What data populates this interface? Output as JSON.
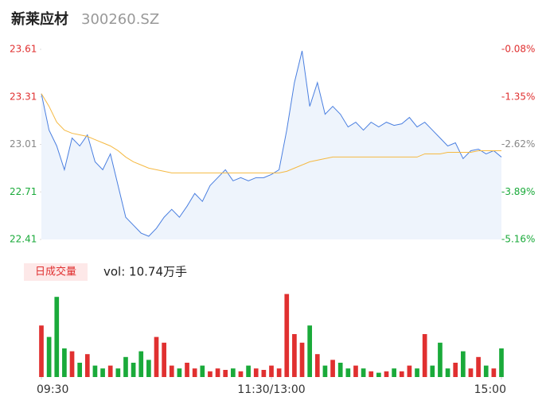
{
  "chart_data": [
    {
      "type": "line",
      "title": "新莱应材",
      "subtitle": "300260.SZ",
      "x": [
        0,
        4,
        8,
        12,
        16,
        20,
        24,
        28,
        32,
        36,
        40,
        44,
        48,
        52,
        56,
        60,
        64,
        68,
        72,
        76,
        80,
        84,
        88,
        92,
        96,
        100,
        104,
        108,
        112,
        116,
        120,
        124,
        128,
        132,
        136,
        140,
        144,
        148,
        152,
        156,
        160,
        164,
        168,
        172,
        176,
        180,
        184,
        188,
        192,
        196,
        200,
        204,
        208,
        212,
        216,
        220,
        224,
        228,
        232,
        236,
        240
      ],
      "xlim": [
        0,
        240
      ],
      "ylim": [
        22.41,
        23.61
      ],
      "yticks": [
        22.41,
        22.71,
        23.01,
        23.31,
        23.61
      ],
      "y2lim": [
        -5.16,
        -0.08
      ],
      "y2ticks": [
        {
          "value": -5.16,
          "label": "-5.16%"
        },
        {
          "value": -3.89,
          "label": "-3.89%"
        },
        {
          "value": -2.62,
          "label": "-2.62%"
        },
        {
          "value": -1.35,
          "label": "-1.35%"
        },
        {
          "value": -0.08,
          "label": "-0.08%"
        }
      ],
      "up_color": "#e03030",
      "down_color": "#1aaa3a",
      "flat_color": "#888888",
      "area": true,
      "series": [
        {
          "color": "#4a7fe0",
          "values": [
            23.33,
            23.1,
            23.0,
            22.85,
            23.05,
            23.0,
            23.07,
            22.9,
            22.85,
            22.95,
            22.75,
            22.55,
            22.5,
            22.45,
            22.43,
            22.48,
            22.55,
            22.6,
            22.55,
            22.62,
            22.7,
            22.65,
            22.75,
            22.8,
            22.85,
            22.78,
            22.8,
            22.78,
            22.8,
            22.8,
            22.82,
            22.85,
            23.1,
            23.4,
            23.6,
            23.25,
            23.4,
            23.2,
            23.25,
            23.2,
            23.12,
            23.15,
            23.1,
            23.15,
            23.12,
            23.15,
            23.13,
            23.14,
            23.18,
            23.12,
            23.15,
            23.1,
            23.05,
            23.0,
            23.02,
            22.92,
            22.97,
            22.98,
            22.95,
            22.97,
            22.93
          ]
        },
        {
          "color": "#f5b942",
          "values": [
            23.33,
            23.25,
            23.15,
            23.1,
            23.08,
            23.07,
            23.06,
            23.04,
            23.02,
            23.0,
            22.97,
            22.93,
            22.9,
            22.88,
            22.86,
            22.85,
            22.84,
            22.83,
            22.83,
            22.83,
            22.83,
            22.83,
            22.83,
            22.83,
            22.83,
            22.83,
            22.83,
            22.83,
            22.83,
            22.83,
            22.83,
            22.83,
            22.84,
            22.86,
            22.88,
            22.9,
            22.91,
            22.92,
            22.93,
            22.93,
            22.93,
            22.93,
            22.93,
            22.93,
            22.93,
            22.93,
            22.93,
            22.93,
            22.93,
            22.93,
            22.95,
            22.95,
            22.95,
            22.96,
            22.96,
            22.96,
            22.96,
            22.97,
            22.97,
            22.97,
            22.97
          ]
        }
      ]
    },
    {
      "type": "bar",
      "label": "日成交量",
      "annotation": "vol: 10.74万手",
      "x": [
        0,
        4,
        8,
        12,
        16,
        20,
        24,
        28,
        32,
        36,
        40,
        44,
        48,
        52,
        56,
        60,
        64,
        68,
        72,
        76,
        80,
        84,
        88,
        92,
        96,
        100,
        104,
        108,
        112,
        116,
        120,
        124,
        128,
        132,
        136,
        140,
        144,
        148,
        152,
        156,
        160,
        164,
        168,
        172,
        176,
        180,
        184,
        188,
        192,
        196,
        200,
        204,
        208,
        212,
        216,
        220,
        224,
        228,
        232,
        236,
        240
      ],
      "xlim": [
        0,
        240
      ],
      "xticks": [
        {
          "value": 0,
          "label": "09:30"
        },
        {
          "value": 120,
          "label": "11:30/13:00"
        },
        {
          "value": 240,
          "label": "15:00"
        }
      ],
      "ylim": [
        0,
        3000
      ],
      "up_color": "#e03030",
      "down_color": "#1aaa3a",
      "values": [
        1800,
        1400,
        2800,
        1000,
        900,
        500,
        800,
        400,
        300,
        400,
        300,
        700,
        500,
        900,
        600,
        1400,
        1200,
        400,
        300,
        500,
        300,
        400,
        200,
        300,
        250,
        300,
        200,
        400,
        300,
        250,
        400,
        300,
        2900,
        1500,
        1200,
        1800,
        800,
        400,
        600,
        500,
        300,
        400,
        300,
        200,
        150,
        200,
        300,
        200,
        400,
        300,
        1500,
        400,
        1200,
        300,
        500,
        900,
        300,
        700,
        400,
        300,
        1000
      ]
    }
  ]
}
